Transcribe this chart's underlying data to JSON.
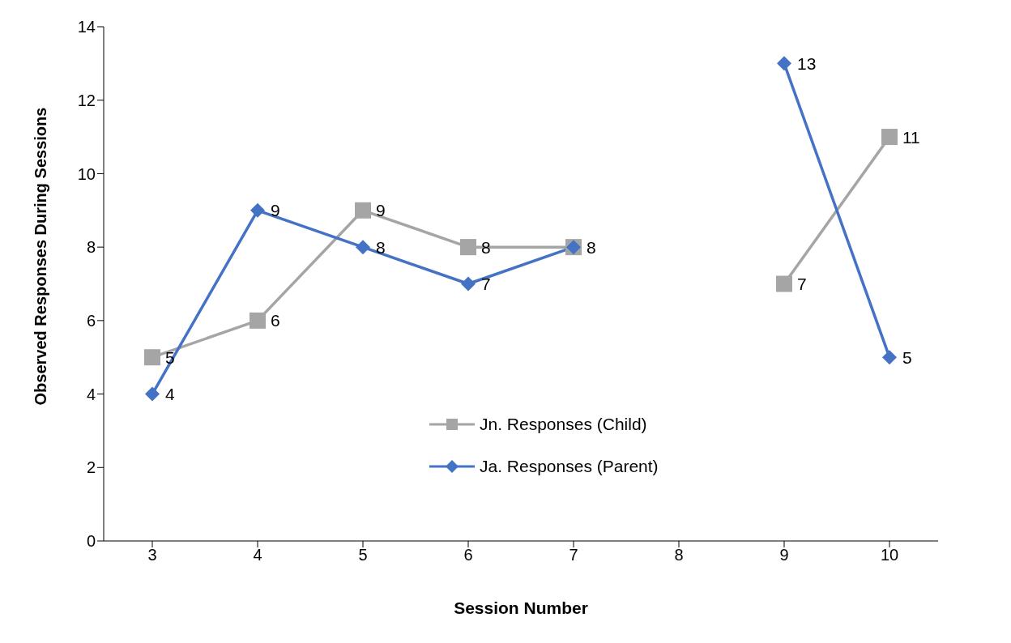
{
  "chart_data": {
    "type": "line",
    "xlabel": "Session Number",
    "ylabel": "Observed Responses During Sessions",
    "categories": [
      "3",
      "4",
      "5",
      "6",
      "7",
      "8",
      "9",
      "10"
    ],
    "series": [
      {
        "name": "Jn. Responses (Child)",
        "color": "#a5a5a5",
        "marker": "square",
        "values": [
          5,
          6,
          9,
          8,
          8,
          null,
          7,
          11
        ],
        "value_labels": [
          "5",
          "6",
          "9",
          "8",
          null,
          null,
          "7",
          "11"
        ]
      },
      {
        "name": "Ja. Responses (Parent)",
        "color": "#4472c4",
        "marker": "diamond",
        "values": [
          4,
          9,
          8,
          7,
          8,
          null,
          13,
          5
        ],
        "value_labels": [
          "4",
          "9",
          "8",
          "7",
          "8",
          null,
          "13",
          "5"
        ]
      }
    ],
    "ylim": [
      0,
      14
    ],
    "yticks": [
      0,
      2,
      4,
      6,
      8,
      10,
      12,
      14
    ],
    "grid": false,
    "legend": "bottom",
    "line_style": "solid"
  }
}
